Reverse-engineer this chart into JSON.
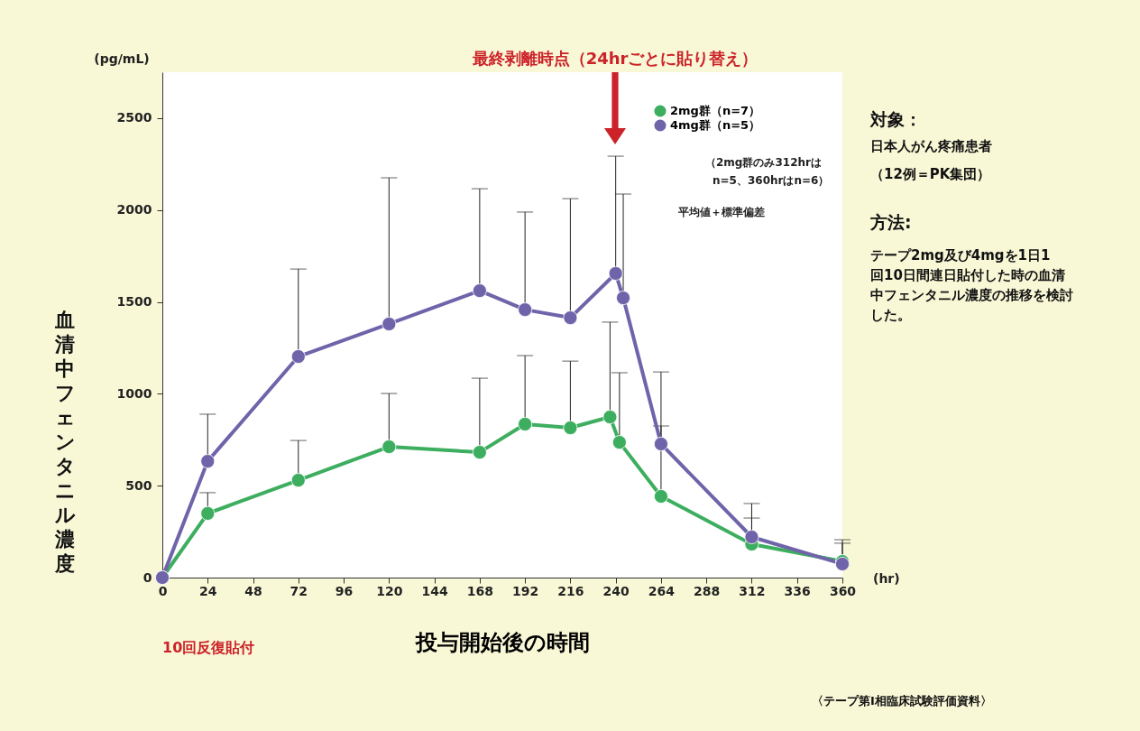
{
  "chart_data": {
    "type": "line",
    "xlabel": "投与開始後の時間",
    "ylabel": "血清中フェンタニル濃度",
    "xlim": [
      0,
      360
    ],
    "ylim": [
      0,
      2750
    ],
    "xticks": [
      0,
      24,
      48,
      72,
      96,
      120,
      144,
      168,
      192,
      216,
      240,
      264,
      288,
      312,
      336,
      360
    ],
    "yticks": [
      0,
      500,
      1000,
      1500,
      2000,
      2500
    ],
    "grid": false,
    "legend": "top right",
    "marker": "circle",
    "line_style": "solid",
    "series": [
      {
        "name": "2mg群（n=7）",
        "color": "#3dae5f",
        "x": [
          0,
          24,
          72,
          120,
          168,
          192,
          216,
          237,
          242,
          264,
          312,
          360
        ],
        "values": [
          0,
          349,
          530,
          712,
          682,
          835,
          815,
          874,
          736,
          442,
          182,
          88
        ],
        "errors": [
          null,
          [
            349,
            462
          ],
          [
            530,
            746
          ],
          [
            712,
            1002
          ],
          [
            682,
            1085
          ],
          [
            835,
            1208
          ],
          [
            815,
            1178
          ],
          [
            874,
            1390
          ],
          [
            736,
            1115
          ],
          [
            442,
            825
          ],
          [
            182,
            324
          ],
          [
            88,
            187
          ]
        ]
      },
      {
        "name": "4mg群（n=5）",
        "color": "#6f64aa",
        "x": [
          0,
          24,
          72,
          120,
          168,
          192,
          216,
          240,
          244,
          264,
          312,
          360
        ],
        "values": [
          0,
          633,
          1203,
          1380,
          1561,
          1458,
          1414,
          1655,
          1522,
          727,
          221,
          74
        ],
        "errors": [
          null,
          [
            633,
            889
          ],
          [
            1203,
            1679
          ],
          [
            1380,
            2175
          ],
          [
            1561,
            2116
          ],
          [
            1458,
            1989
          ],
          [
            1414,
            2062
          ],
          [
            1655,
            2293
          ],
          [
            1522,
            2087
          ],
          [
            727,
            1119
          ],
          [
            221,
            403
          ],
          [
            74,
            206
          ]
        ]
      }
    ],
    "annotations": [
      "（2mg群のみ312hrは",
      "n=5、360hrはn=6）",
      "平均値＋標準偏差",
      "(pg/mL)",
      "(hr)",
      "対象：",
      "日本人がん疼痛患者",
      "（12例＝PK集団）",
      "方法:",
      "テープ2mg及び4mgを1日1回10日間連日貼付した時の血清中フェンタニル濃度の推移を検討した。",
      "〈テープ第Ⅰ相臨床試験評価資料〉",
      "10回反復貼付",
      "最終剥離時点（24hrごとに貼り替え）"
    ]
  }
}
